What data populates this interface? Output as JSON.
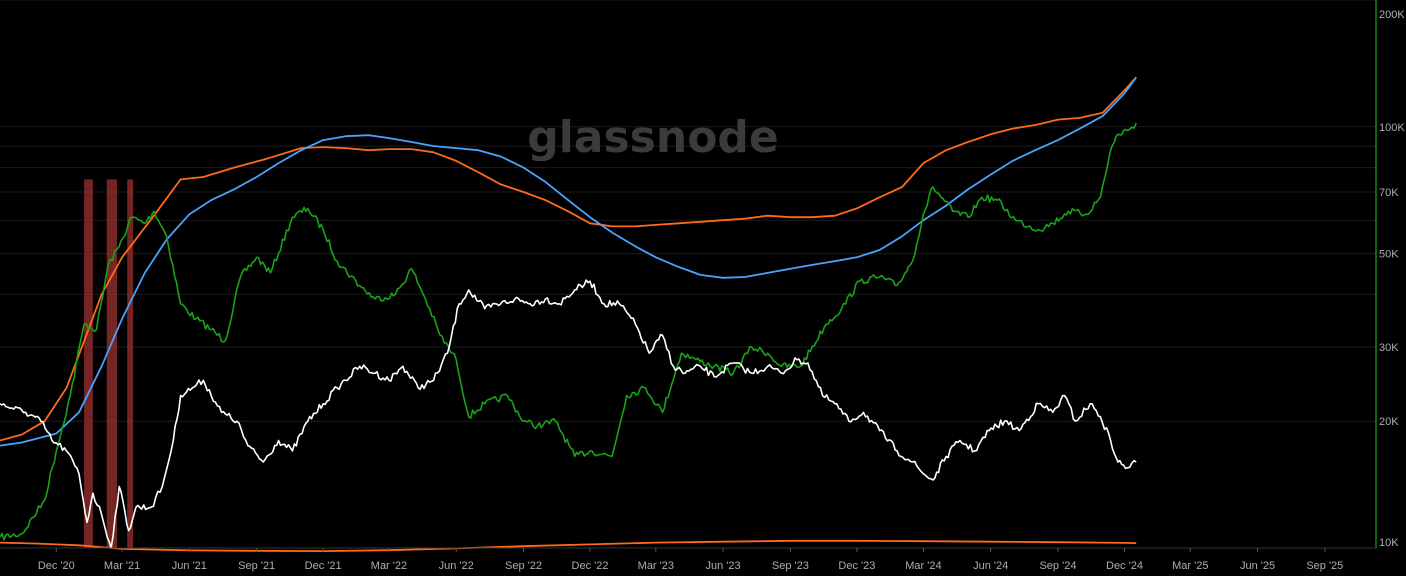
{
  "watermark": "glassnode",
  "chart_data": {
    "type": "line",
    "y_scale": "log",
    "ylim": [
      10000,
      200000
    ],
    "x_range": [
      "2020-09-15",
      "2025-11-10"
    ],
    "grid": true,
    "y_ticks": [
      {
        "value": 10000,
        "label": "10K"
      },
      {
        "value": 20000,
        "label": "20K"
      },
      {
        "value": 30000,
        "label": "30K"
      },
      {
        "value": 50000,
        "label": "50K"
      },
      {
        "value": 70000,
        "label": "70K"
      },
      {
        "value": 100000,
        "label": "100K"
      },
      {
        "value": 200000,
        "label": "200K"
      }
    ],
    "x_ticks": [
      {
        "date": "2020-12-01",
        "label": "Dec '20"
      },
      {
        "date": "2021-03-01",
        "label": "Mar '21"
      },
      {
        "date": "2021-06-01",
        "label": "Jun '21"
      },
      {
        "date": "2021-09-01",
        "label": "Sep '21"
      },
      {
        "date": "2021-12-01",
        "label": "Dec '21"
      },
      {
        "date": "2022-03-01",
        "label": "Mar '22"
      },
      {
        "date": "2022-06-01",
        "label": "Jun '22"
      },
      {
        "date": "2022-09-01",
        "label": "Sep '22"
      },
      {
        "date": "2022-12-01",
        "label": "Dec '22"
      },
      {
        "date": "2023-03-01",
        "label": "Mar '23"
      },
      {
        "date": "2023-06-01",
        "label": "Jun '23"
      },
      {
        "date": "2023-09-01",
        "label": "Sep '23"
      },
      {
        "date": "2023-12-01",
        "label": "Dec '23"
      },
      {
        "date": "2024-03-01",
        "label": "Mar '24"
      },
      {
        "date": "2024-06-01",
        "label": "Jun '24"
      },
      {
        "date": "2024-09-01",
        "label": "Sep '24"
      },
      {
        "date": "2024-12-01",
        "label": "Dec '24"
      },
      {
        "date": "2025-03-01",
        "label": "Mar '25"
      },
      {
        "date": "2025-06-01",
        "label": "Jun '25"
      },
      {
        "date": "2025-09-01",
        "label": "Sep '25"
      }
    ],
    "highlight_bands": [
      {
        "start": "2021-01-08",
        "end": "2021-01-20",
        "color": "#8b2b2b"
      },
      {
        "start": "2021-02-08",
        "end": "2021-02-22",
        "color": "#8b2b2b"
      },
      {
        "start": "2021-03-08",
        "end": "2021-03-16",
        "color": "#8b2b2b"
      }
    ],
    "series": [
      {
        "color": "#ff6a1a",
        "x": [
          "2020-09-15",
          "2020-11-01",
          "2020-12-01",
          "2021-01-01",
          "2021-03-01",
          "2021-06-01",
          "2021-09-01",
          "2021-12-01",
          "2022-03-01",
          "2022-06-01",
          "2022-09-01",
          "2022-12-01",
          "2023-03-01",
          "2023-06-01",
          "2023-09-01",
          "2023-12-01",
          "2024-03-01",
          "2024-06-01",
          "2024-09-01",
          "2024-12-01",
          "2024-12-17"
        ],
        "values": [
          10300,
          10250,
          10200,
          10150,
          9950,
          9870,
          9850,
          9830,
          9880,
          9980,
          10100,
          10200,
          10300,
          10350,
          10400,
          10400,
          10380,
          10350,
          10320,
          10280,
          10270
        ]
      },
      {
        "color": "#ff6a1a",
        "x": [
          "2020-09-15",
          "2020-10-15",
          "2020-11-15",
          "2020-12-15",
          "2021-01-05",
          "2021-02-01",
          "2021-03-01",
          "2021-04-15",
          "2021-05-20",
          "2021-06-20",
          "2021-08-01",
          "2021-09-15",
          "2021-11-01",
          "2021-12-01",
          "2022-01-01",
          "2022-02-01",
          "2022-03-01",
          "2022-04-01",
          "2022-05-01",
          "2022-06-01",
          "2022-07-01",
          "2022-08-01",
          "2022-09-01",
          "2022-10-01",
          "2022-11-01",
          "2022-12-01",
          "2023-01-01",
          "2023-02-01",
          "2023-03-01",
          "2023-04-01",
          "2023-05-01",
          "2023-06-01",
          "2023-07-01",
          "2023-08-01",
          "2023-09-01",
          "2023-10-01",
          "2023-11-01",
          "2023-12-01",
          "2024-01-01",
          "2024-02-01",
          "2024-03-01",
          "2024-04-01",
          "2024-05-01",
          "2024-06-01",
          "2024-07-01",
          "2024-08-01",
          "2024-09-01",
          "2024-10-01",
          "2024-11-01",
          "2024-12-01",
          "2024-12-17"
        ],
        "values": [
          18000,
          18600,
          20000,
          24000,
          30000,
          40000,
          49000,
          62000,
          75000,
          76000,
          80000,
          84000,
          89000,
          89500,
          89000,
          88000,
          88500,
          88500,
          87000,
          83000,
          78000,
          73000,
          70000,
          67000,
          63000,
          59000,
          58000,
          58000,
          58500,
          59000,
          59500,
          60000,
          60500,
          61500,
          61000,
          61000,
          61500,
          64000,
          68000,
          72000,
          82000,
          88000,
          92000,
          96000,
          99000,
          101000,
          104000,
          105000,
          108000,
          122000,
          131000
        ]
      },
      {
        "color": "#4aa3ff",
        "x": [
          "2020-09-15",
          "2020-10-15",
          "2020-12-01",
          "2021-01-01",
          "2021-02-01",
          "2021-03-01",
          "2021-04-01",
          "2021-05-01",
          "2021-06-01",
          "2021-07-01",
          "2021-08-01",
          "2021-09-01",
          "2021-10-01",
          "2021-11-01",
          "2021-12-01",
          "2022-01-01",
          "2022-02-01",
          "2022-03-01",
          "2022-04-01",
          "2022-05-01",
          "2022-06-01",
          "2022-07-01",
          "2022-08-01",
          "2022-09-01",
          "2022-10-01",
          "2022-11-01",
          "2022-12-01",
          "2023-01-01",
          "2023-02-01",
          "2023-03-01",
          "2023-04-01",
          "2023-05-01",
          "2023-06-01",
          "2023-07-01",
          "2023-08-01",
          "2023-09-01",
          "2023-10-01",
          "2023-11-01",
          "2023-12-01",
          "2024-01-01",
          "2024-02-01",
          "2024-03-01",
          "2024-04-01",
          "2024-05-01",
          "2024-06-01",
          "2024-07-01",
          "2024-08-01",
          "2024-09-01",
          "2024-10-01",
          "2024-11-01",
          "2024-12-01",
          "2024-12-17"
        ],
        "values": [
          17500,
          17800,
          18700,
          21000,
          27000,
          35000,
          45000,
          54000,
          62000,
          67000,
          71000,
          76000,
          82000,
          88000,
          93000,
          95000,
          95500,
          94000,
          92000,
          90000,
          89000,
          88000,
          85000,
          80000,
          74000,
          67000,
          61000,
          56000,
          52000,
          49000,
          46500,
          44500,
          43800,
          44000,
          45000,
          46000,
          47000,
          48000,
          49000,
          51000,
          55000,
          60000,
          65000,
          71000,
          77000,
          83000,
          88000,
          93000,
          99000,
          106000,
          120000,
          131000
        ]
      },
      {
        "color": "#19a319",
        "x": [
          "2020-09-15",
          "2020-10-15",
          "2020-11-15",
          "2020-12-01",
          "2020-12-20",
          "2021-01-08",
          "2021-01-25",
          "2021-02-10",
          "2021-02-25",
          "2021-03-14",
          "2021-04-01",
          "2021-04-14",
          "2021-05-01",
          "2021-05-20",
          "2021-06-10",
          "2021-07-01",
          "2021-07-20",
          "2021-08-10",
          "2021-09-01",
          "2021-09-20",
          "2021-10-20",
          "2021-11-10",
          "2021-12-01",
          "2021-12-20",
          "2022-01-20",
          "2022-02-10",
          "2022-03-10",
          "2022-04-01",
          "2022-04-20",
          "2022-05-10",
          "2022-06-01",
          "2022-06-18",
          "2022-07-10",
          "2022-08-10",
          "2022-09-01",
          "2022-09-20",
          "2022-10-15",
          "2022-11-10",
          "2022-12-01",
          "2022-12-31",
          "2023-01-20",
          "2023-02-15",
          "2023-03-10",
          "2023-04-05",
          "2023-04-25",
          "2023-05-20",
          "2023-06-15",
          "2023-07-10",
          "2023-08-01",
          "2023-08-20",
          "2023-09-15",
          "2023-10-20",
          "2023-11-10",
          "2023-12-05",
          "2024-01-01",
          "2024-01-25",
          "2024-02-15",
          "2024-03-01",
          "2024-03-14",
          "2024-04-10",
          "2024-05-01",
          "2024-05-20",
          "2024-06-10",
          "2024-07-05",
          "2024-08-05",
          "2024-08-25",
          "2024-09-15",
          "2024-10-10",
          "2024-10-29",
          "2024-11-12",
          "2024-11-22",
          "2024-12-05",
          "2024-12-17"
        ],
        "values": [
          10600,
          10800,
          13000,
          17000,
          23000,
          34000,
          33000,
          47000,
          52000,
          61000,
          59000,
          63000,
          55000,
          38000,
          35000,
          33000,
          31000,
          44000,
          49000,
          45000,
          61000,
          64000,
          57000,
          48000,
          42000,
          39000,
          40000,
          46000,
          39000,
          32000,
          28000,
          20500,
          22000,
          23000,
          20000,
          19500,
          20000,
          16500,
          17000,
          16500,
          23000,
          24000,
          21000,
          29000,
          28000,
          27000,
          26000,
          30000,
          29000,
          27000,
          27000,
          34000,
          37000,
          43000,
          44000,
          42000,
          48000,
          62000,
          72000,
          63000,
          61000,
          68000,
          67000,
          60000,
          57000,
          59000,
          63000,
          62000,
          68000,
          88000,
          96000,
          98000,
          102000
        ]
      },
      {
        "color": "#ffffff",
        "x": [
          "2020-09-15",
          "2020-10-01",
          "2020-10-20",
          "2020-11-10",
          "2020-11-25",
          "2020-12-15",
          "2021-01-01",
          "2021-01-12",
          "2021-01-20",
          "2021-02-01",
          "2021-02-14",
          "2021-02-25",
          "2021-03-10",
          "2021-03-20",
          "2021-04-10",
          "2021-04-25",
          "2021-05-10",
          "2021-05-20",
          "2021-06-05",
          "2021-06-20",
          "2021-07-15",
          "2021-08-05",
          "2021-08-20",
          "2021-09-10",
          "2021-10-01",
          "2021-10-20",
          "2021-11-10",
          "2021-12-01",
          "2021-12-20",
          "2022-01-20",
          "2022-02-10",
          "2022-03-01",
          "2022-03-20",
          "2022-04-10",
          "2022-05-01",
          "2022-05-20",
          "2022-06-05",
          "2022-06-18",
          "2022-07-10",
          "2022-08-01",
          "2022-08-20",
          "2022-09-10",
          "2022-10-01",
          "2022-10-20",
          "2022-11-10",
          "2022-12-01",
          "2022-12-20",
          "2023-01-10",
          "2023-02-01",
          "2023-02-20",
          "2023-03-10",
          "2023-03-25",
          "2023-04-10",
          "2023-05-01",
          "2023-05-20",
          "2023-06-15",
          "2023-07-10",
          "2023-08-01",
          "2023-08-20",
          "2023-09-10",
          "2023-09-25",
          "2023-10-15",
          "2023-11-01",
          "2023-11-20",
          "2023-12-10",
          "2024-01-01",
          "2024-01-25",
          "2024-02-15",
          "2024-03-01",
          "2024-03-14",
          "2024-04-01",
          "2024-04-20",
          "2024-05-10",
          "2024-05-30",
          "2024-06-20",
          "2024-07-10",
          "2024-08-05",
          "2024-08-25",
          "2024-09-10",
          "2024-09-25",
          "2024-10-15",
          "2024-10-29",
          "2024-11-12",
          "2024-11-22",
          "2024-12-05",
          "2024-12-17"
        ],
        "values": [
          22000,
          21500,
          21000,
          20000,
          18000,
          17000,
          15000,
          11500,
          13500,
          12000,
          10000,
          14000,
          11000,
          12500,
          12500,
          14000,
          18000,
          23000,
          24000,
          25000,
          21000,
          20000,
          17500,
          16000,
          18000,
          17000,
          20000,
          22000,
          24000,
          27000,
          26000,
          25000,
          27000,
          24000,
          25000,
          29000,
          38000,
          41000,
          37000,
          38000,
          39000,
          38000,
          39000,
          38000,
          41000,
          43000,
          38000,
          38000,
          34000,
          29000,
          32000,
          27000,
          26000,
          27000,
          25500,
          27500,
          26000,
          27000,
          26000,
          28000,
          27500,
          23000,
          22000,
          20000,
          21000,
          19000,
          17000,
          16000,
          15000,
          14500,
          16500,
          18000,
          17000,
          19000,
          20000,
          19000,
          22000,
          21000,
          23000,
          20000,
          22000,
          20500,
          18000,
          16000,
          15500,
          16000
        ]
      }
    ]
  }
}
